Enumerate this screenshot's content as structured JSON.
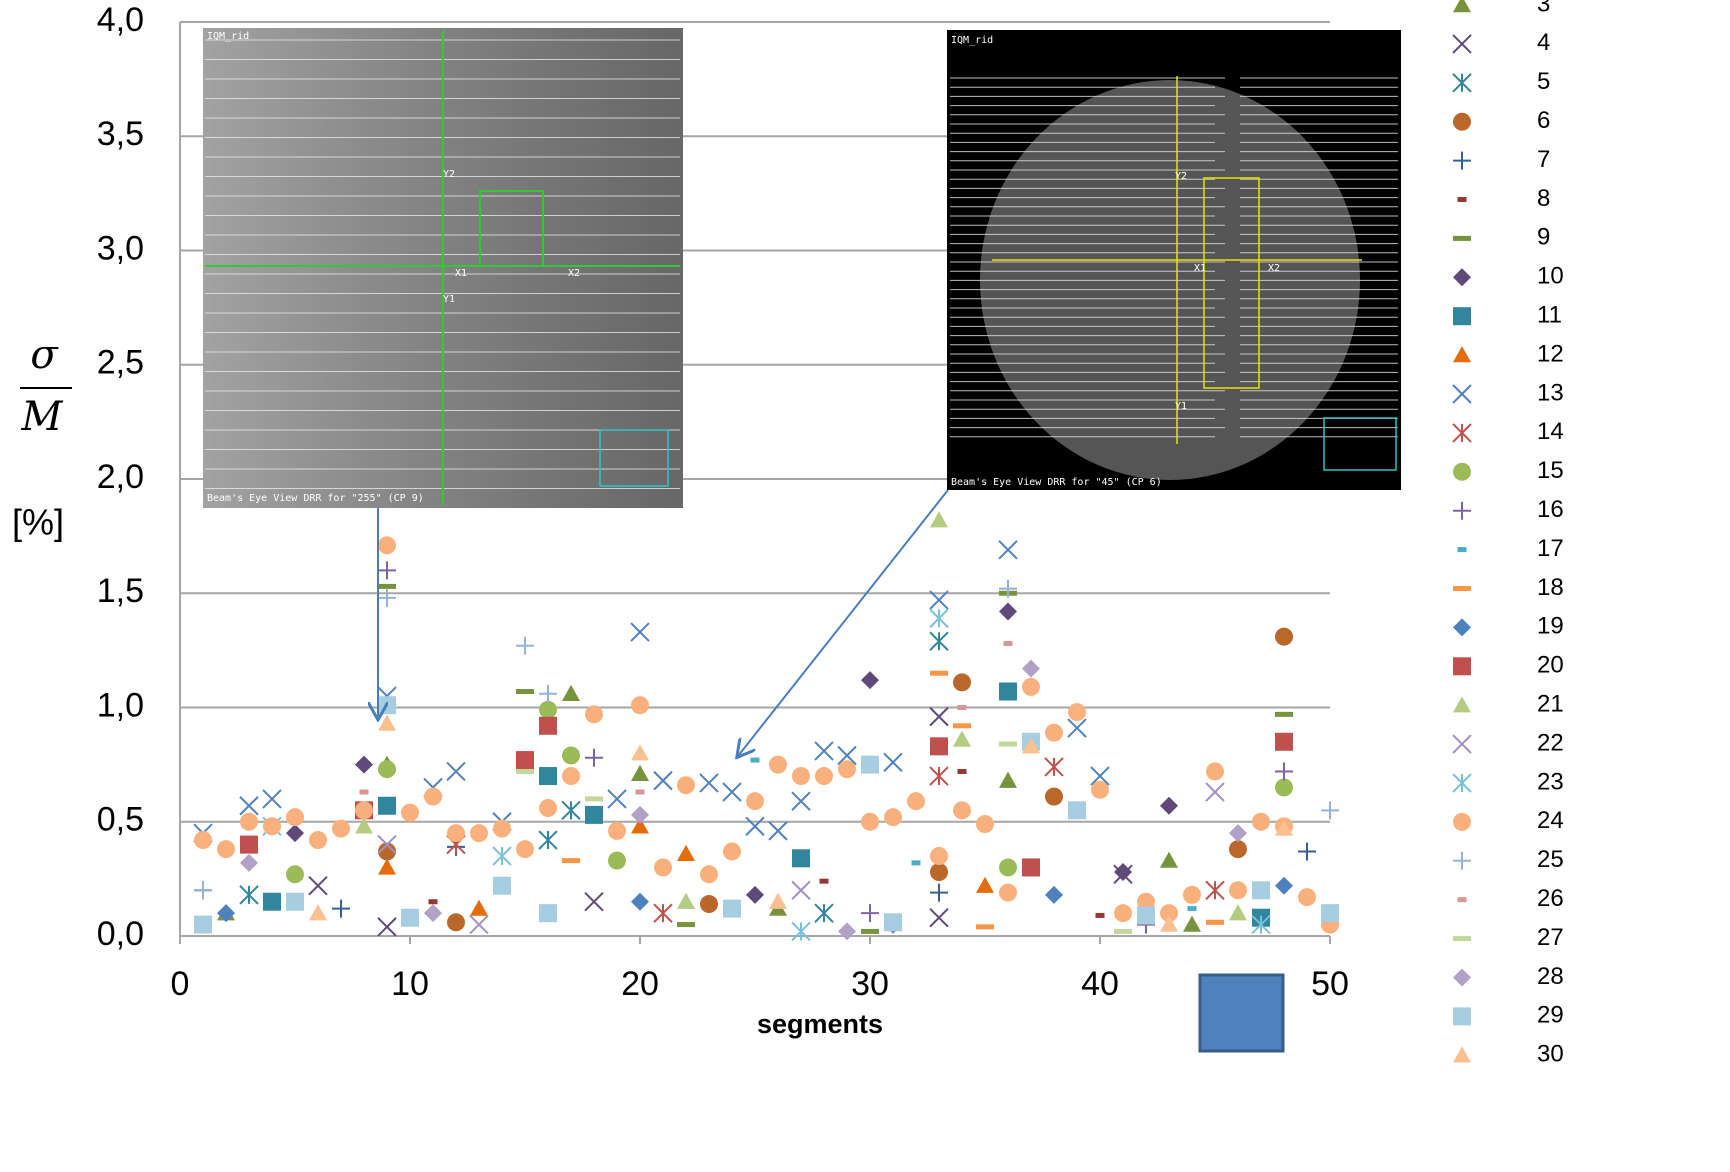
{
  "chart_data": {
    "type": "scatter",
    "xlabel": "segments",
    "ylabel": {
      "numerator": "σ",
      "denominator": "M",
      "unit": "[%]"
    },
    "xlim": [
      0,
      50
    ],
    "xticks": [
      0,
      10,
      20,
      30,
      40,
      50
    ],
    "ylim": [
      0,
      4
    ],
    "yticks": [
      {
        "value": 0,
        "label": "0,0"
      },
      {
        "value": 0.5,
        "label": "0,5"
      },
      {
        "value": 1,
        "label": "1,0"
      },
      {
        "value": 1.5,
        "label": "1,5"
      },
      {
        "value": 2,
        "label": "2,0"
      },
      {
        "value": 2.5,
        "label": "2,5"
      },
      {
        "value": 3,
        "label": "3,0"
      },
      {
        "value": 3.5,
        "label": "3,5"
      },
      {
        "value": 4,
        "label": "4,0"
      }
    ],
    "grid": true,
    "legend": "right",
    "series": [
      {
        "name": "3",
        "color": "#77933c",
        "marker": "triangle",
        "x": [
          17,
          20,
          36,
          43,
          9,
          2,
          26,
          44
        ],
        "values": [
          1.06,
          0.71,
          0.68,
          0.33,
          0.75,
          0.1,
          0.12,
          0.05
        ]
      },
      {
        "name": "4",
        "color": "#604a7b",
        "marker": "x",
        "x": [
          33,
          9,
          33,
          41,
          18,
          6
        ],
        "values": [
          0.08,
          0.04,
          0.96,
          0.27,
          0.15,
          0.22
        ]
      },
      {
        "name": "5",
        "color": "#31859c",
        "marker": "asterisk",
        "x": [
          33,
          16,
          17,
          28,
          3
        ],
        "values": [
          1.29,
          0.42,
          0.55,
          0.1,
          0.18
        ]
      },
      {
        "name": "6",
        "color": "#b9672b",
        "marker": "circle",
        "x": [
          9,
          34,
          48,
          38,
          33,
          46,
          12,
          23
        ],
        "values": [
          0.37,
          1.11,
          1.31,
          0.61,
          0.28,
          0.38,
          0.06,
          0.14
        ]
      },
      {
        "name": "7",
        "color": "#376092",
        "marker": "plus",
        "x": [
          49,
          12,
          33,
          1,
          7
        ],
        "values": [
          0.37,
          0.39,
          0.19,
          0.2,
          0.12
        ]
      },
      {
        "name": "8",
        "color": "#953735",
        "marker": "dash",
        "x": [
          34,
          28,
          11,
          40
        ],
        "values": [
          0.72,
          0.24,
          0.15,
          0.09
        ]
      },
      {
        "name": "9",
        "color": "#77933c",
        "marker": "longdash",
        "x": [
          9,
          15,
          48,
          36,
          22,
          30
        ],
        "values": [
          1.53,
          1.07,
          0.97,
          1.5,
          0.05,
          0.02
        ]
      },
      {
        "name": "10",
        "color": "#5f497a",
        "marker": "diamond",
        "x": [
          30,
          36,
          8,
          43,
          5,
          41,
          25
        ],
        "values": [
          1.12,
          1.42,
          0.75,
          0.57,
          0.45,
          0.28,
          0.18
        ]
      },
      {
        "name": "11",
        "color": "#31859c",
        "marker": "square",
        "x": [
          16,
          36,
          9,
          27,
          18,
          47,
          4
        ],
        "values": [
          0.7,
          1.07,
          0.57,
          0.34,
          0.53,
          0.08,
          0.15
        ]
      },
      {
        "name": "12",
        "color": "#e46c0a",
        "marker": "triangle",
        "x": [
          22,
          20,
          9,
          35,
          13
        ],
        "values": [
          0.36,
          0.48,
          0.3,
          0.22,
          0.12
        ]
      },
      {
        "name": "13",
        "color": "#4f81bd",
        "marker": "x",
        "x": [
          1,
          3,
          4,
          9,
          11,
          12,
          14,
          19,
          20,
          21,
          23,
          24,
          25,
          26,
          27,
          28,
          29,
          31,
          33,
          36,
          39,
          40
        ],
        "values": [
          0.45,
          0.57,
          0.6,
          1.05,
          0.65,
          0.72,
          0.5,
          0.6,
          1.33,
          0.68,
          0.67,
          0.63,
          0.48,
          0.46,
          0.59,
          0.81,
          0.79,
          0.76,
          1.47,
          1.69,
          0.91,
          0.7
        ]
      },
      {
        "name": "14",
        "color": "#c0504d",
        "marker": "asterisk",
        "x": [
          38,
          33,
          12,
          45,
          21
        ],
        "values": [
          0.74,
          0.7,
          0.4,
          0.2,
          0.1
        ]
      },
      {
        "name": "15",
        "color": "#9bbb59",
        "marker": "circle",
        "x": [
          16,
          17,
          48,
          9,
          19,
          36,
          5
        ],
        "values": [
          0.99,
          0.79,
          0.65,
          0.73,
          0.33,
          0.3,
          0.27
        ]
      },
      {
        "name": "16",
        "color": "#8064a2",
        "marker": "plus",
        "x": [
          9,
          18,
          48,
          30,
          42
        ],
        "values": [
          1.6,
          0.78,
          0.72,
          0.1,
          0.05
        ]
      },
      {
        "name": "17",
        "color": "#4bacc6",
        "marker": "dash",
        "x": [
          25,
          32,
          10,
          44
        ],
        "values": [
          0.77,
          0.32,
          0.08,
          0.12
        ]
      },
      {
        "name": "18",
        "color": "#f79646",
        "marker": "longdash",
        "x": [
          33,
          34,
          17,
          45,
          35
        ],
        "values": [
          1.15,
          0.92,
          0.33,
          0.06,
          0.04
        ]
      },
      {
        "name": "19",
        "color": "#4f81bd",
        "marker": "diamond",
        "x": [
          48,
          2,
          20,
          31,
          38
        ],
        "values": [
          0.22,
          0.1,
          0.15,
          0.05,
          0.18
        ]
      },
      {
        "name": "20",
        "color": "#c0504d",
        "marker": "square",
        "x": [
          48,
          16,
          15,
          33,
          3,
          8,
          37
        ],
        "values": [
          0.85,
          0.92,
          0.77,
          0.83,
          0.4,
          0.55,
          0.3
        ]
      },
      {
        "name": "21",
        "color": "#b3cc82",
        "marker": "triangle",
        "x": [
          33,
          34,
          8,
          22,
          46
        ],
        "values": [
          1.82,
          0.86,
          0.48,
          0.15,
          0.1
        ]
      },
      {
        "name": "22",
        "color": "#a18fbf",
        "marker": "x",
        "x": [
          45,
          9,
          27,
          13
        ],
        "values": [
          0.63,
          0.4,
          0.2,
          0.05
        ]
      },
      {
        "name": "23",
        "color": "#78c1d6",
        "marker": "asterisk",
        "x": [
          33,
          4,
          14,
          27,
          47
        ],
        "values": [
          1.39,
          0.48,
          0.35,
          0.02,
          0.05
        ]
      },
      {
        "name": "24",
        "color": "#fab07c",
        "marker": "circle",
        "x": [
          1,
          2,
          3,
          4,
          5,
          6,
          7,
          8,
          9,
          10,
          11,
          12,
          13,
          14,
          15,
          16,
          17,
          18,
          19,
          20,
          21,
          22,
          23,
          24,
          25,
          26,
          27,
          28,
          29,
          30,
          31,
          32,
          33,
          34,
          35,
          36,
          37,
          38,
          39,
          40,
          41,
          42,
          43,
          44,
          45,
          46,
          47,
          48,
          49,
          50
        ],
        "values": [
          0.42,
          0.38,
          0.5,
          0.48,
          0.52,
          0.42,
          0.47,
          0.55,
          1.71,
          0.54,
          0.61,
          0.45,
          0.45,
          0.47,
          0.38,
          0.56,
          0.7,
          0.97,
          0.46,
          1.01,
          0.3,
          0.66,
          0.27,
          0.37,
          0.59,
          0.75,
          0.7,
          0.7,
          0.73,
          0.5,
          0.52,
          0.59,
          0.35,
          0.55,
          0.49,
          0.19,
          1.09,
          0.89,
          0.98,
          0.64,
          0.1,
          0.15,
          0.1,
          0.18,
          0.72,
          0.2,
          0.5,
          0.48,
          0.17,
          0.05
        ]
      },
      {
        "name": "25",
        "color": "#95b3d7",
        "marker": "plus",
        "x": [
          9,
          15,
          16,
          36,
          50,
          1
        ],
        "values": [
          1.48,
          1.27,
          1.06,
          1.52,
          0.55,
          0.2
        ]
      },
      {
        "name": "26",
        "color": "#d99694",
        "marker": "dash",
        "x": [
          36,
          20,
          8,
          34
        ],
        "values": [
          1.28,
          0.63,
          0.63,
          1.0
        ]
      },
      {
        "name": "27",
        "color": "#c3d69b",
        "marker": "longdash",
        "x": [
          36,
          15,
          18,
          41
        ],
        "values": [
          0.84,
          0.72,
          0.6,
          0.02
        ]
      },
      {
        "name": "28",
        "color": "#b2a1c7",
        "marker": "diamond",
        "x": [
          37,
          20,
          3,
          46,
          29,
          11
        ],
        "values": [
          1.17,
          0.53,
          0.32,
          0.45,
          0.02,
          0.1
        ]
      },
      {
        "name": "29",
        "color": "#a7cde0",
        "marker": "square",
        "x": [
          9,
          30,
          39,
          37,
          14,
          5,
          1,
          10,
          16,
          24,
          31,
          42,
          47,
          50
        ],
        "values": [
          1.01,
          0.75,
          0.55,
          0.85,
          0.22,
          0.15,
          0.05,
          0.08,
          0.1,
          0.12,
          0.06,
          0.09,
          0.2,
          0.1
        ]
      },
      {
        "name": "30",
        "color": "#fac090",
        "marker": "triangle",
        "x": [
          9,
          20,
          37,
          48,
          6,
          26,
          43
        ],
        "values": [
          0.93,
          0.8,
          0.83,
          0.47,
          0.1,
          0.15,
          0.05
        ]
      }
    ],
    "insets": [
      {
        "title": "IQM_rid",
        "caption": "Beam's Eye View DRR for \"255\" (CP 9)",
        "labels": [
          "Y2",
          "X1",
          "X2",
          "Y1"
        ]
      },
      {
        "title": "IQM_rid",
        "caption": "Beam's Eye View DRR for \"45\" (CP 6)",
        "labels": [
          "Y2",
          "X1",
          "X2",
          "Y1"
        ]
      }
    ]
  }
}
